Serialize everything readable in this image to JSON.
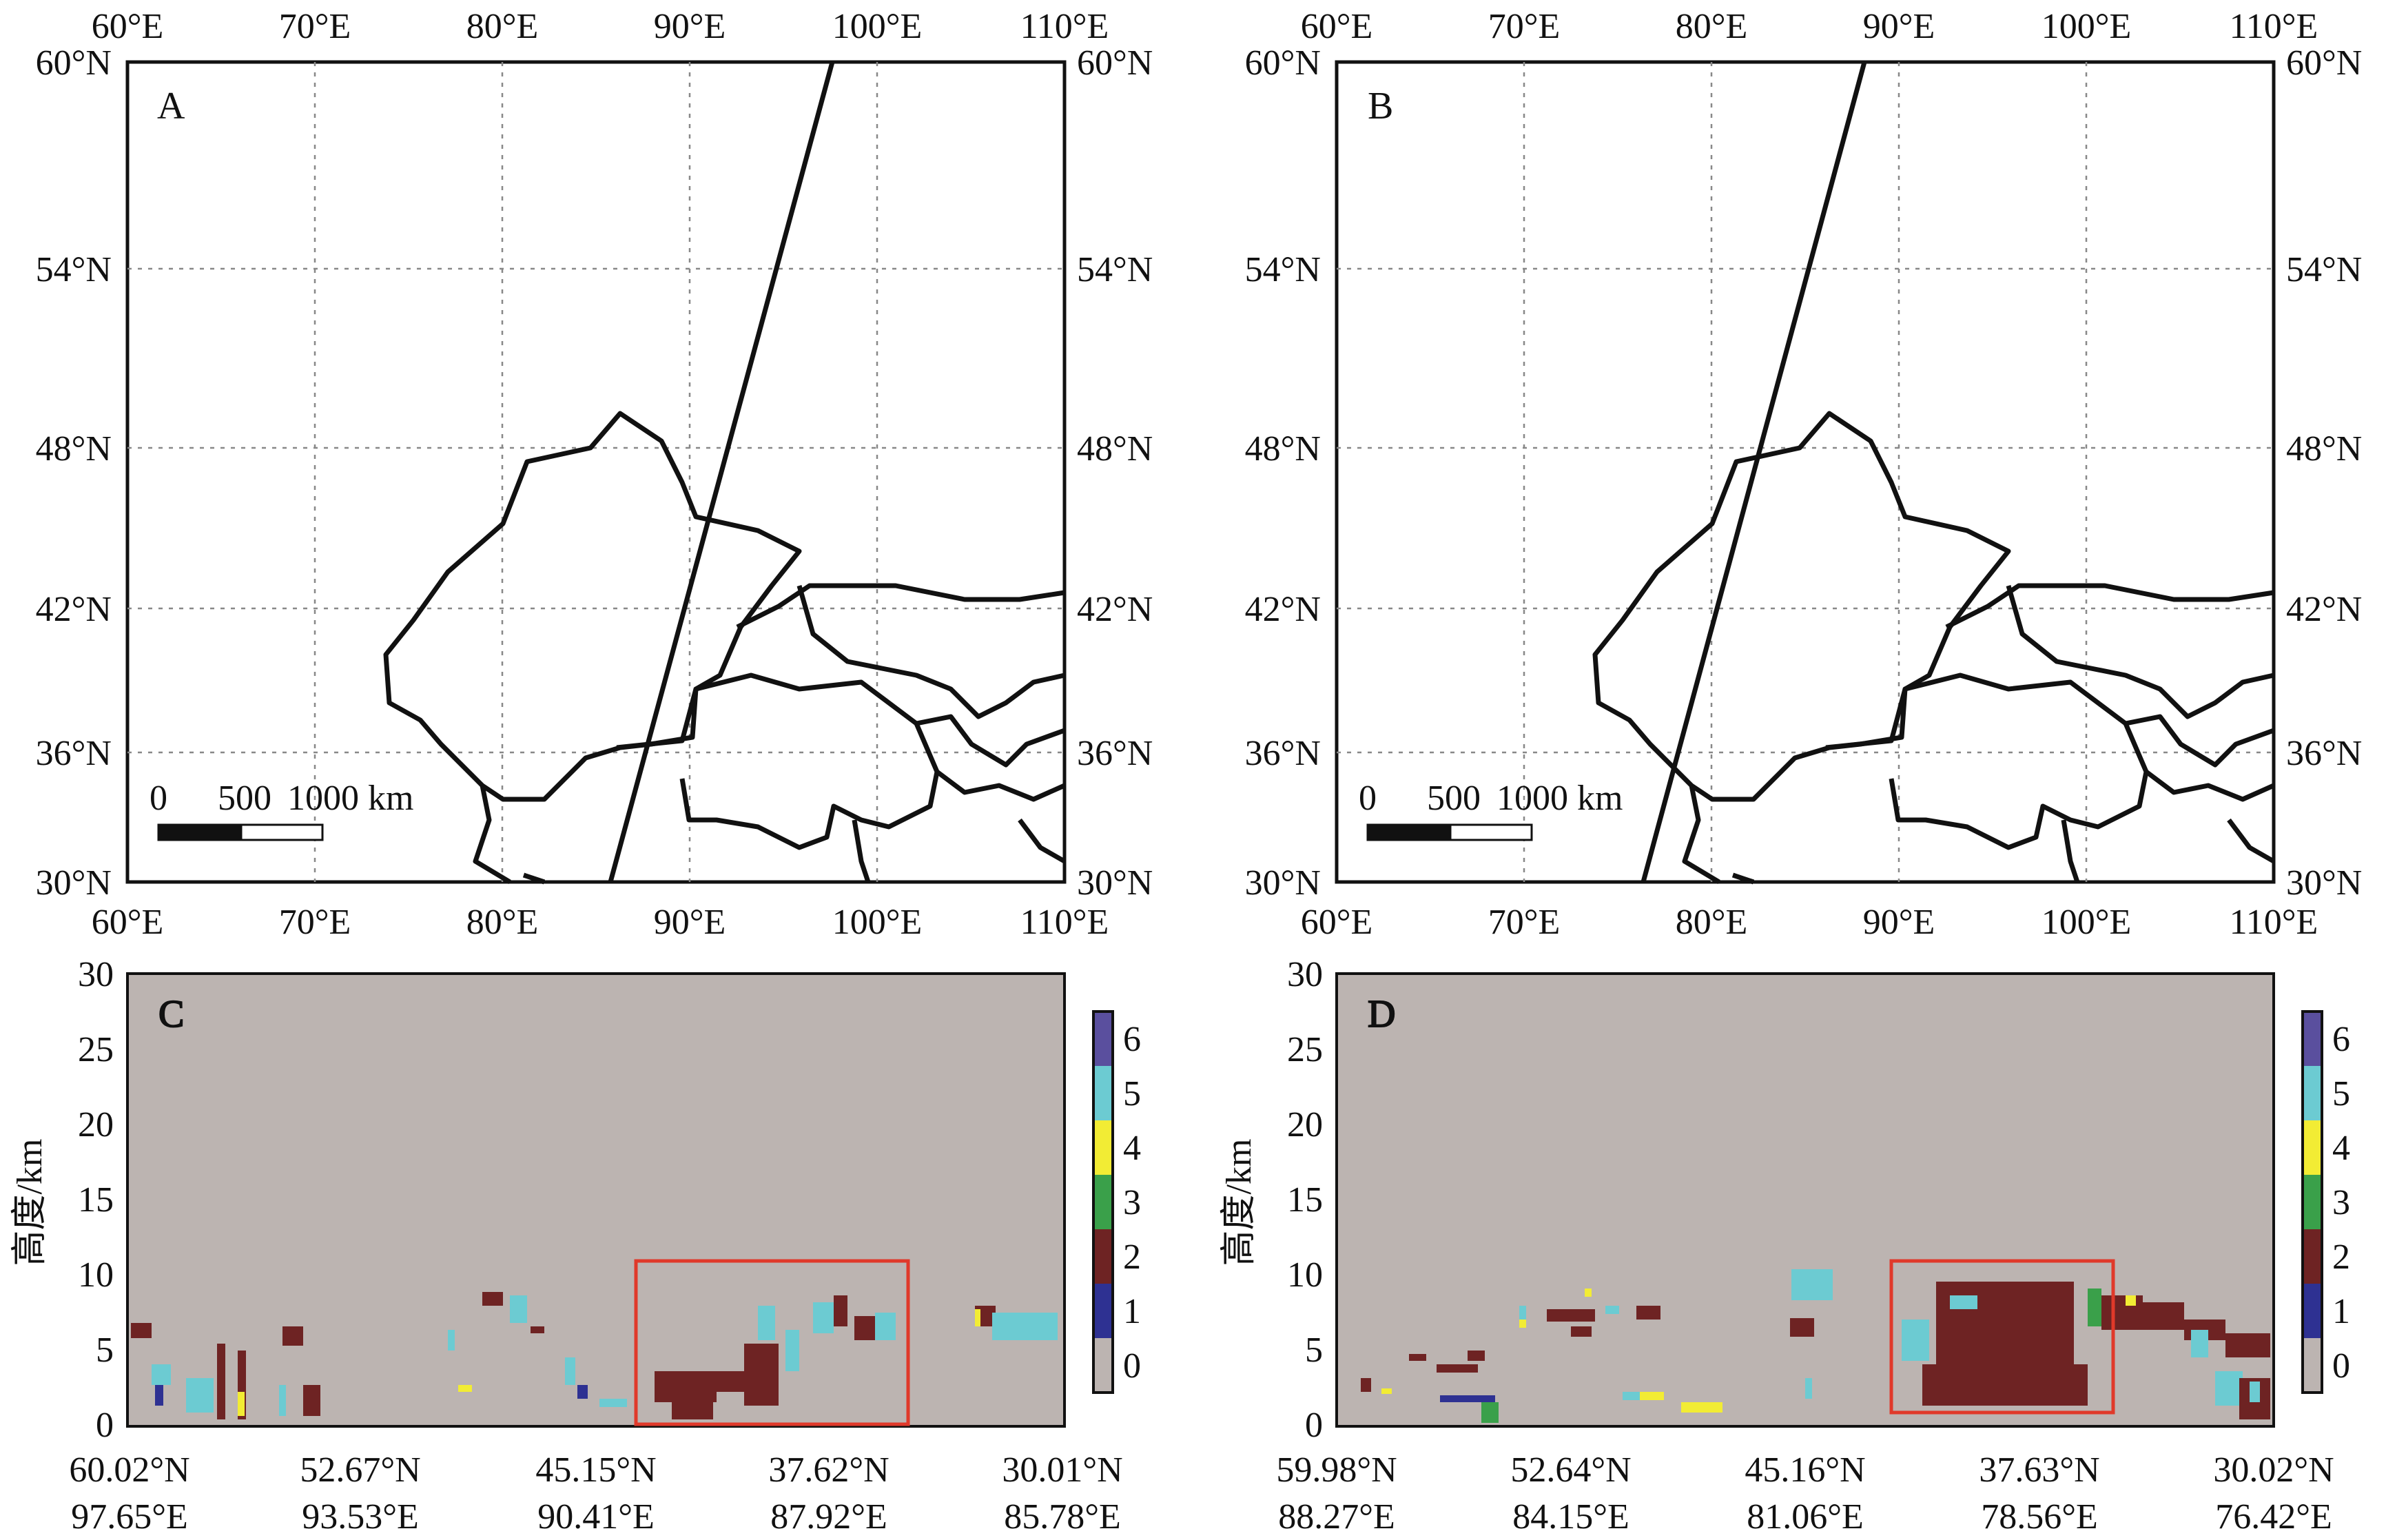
{
  "maps": [
    {
      "id": "A",
      "panel_label": "A",
      "lon_ticks": [
        "60°E",
        "70°E",
        "80°E",
        "90°E",
        "100°E",
        "110°E"
      ],
      "lat_ticks": [
        "60°N",
        "54°N",
        "48°N",
        "42°N",
        "36°N",
        "30°N"
      ],
      "scalebar": {
        "zero": "0",
        "mid": "500",
        "end": "1000 km"
      },
      "track": [
        [
          97.65,
          60.02
        ],
        [
          85.78,
          30.01
        ]
      ]
    },
    {
      "id": "B",
      "panel_label": "B",
      "lon_ticks": [
        "60°E",
        "70°E",
        "80°E",
        "90°E",
        "100°E",
        "110°E"
      ],
      "lat_ticks": [
        "60°N",
        "54°N",
        "48°N",
        "42°N",
        "36°N",
        "30°N"
      ],
      "scalebar": {
        "zero": "0",
        "mid": "500",
        "end": "1000 km"
      },
      "track": [
        [
          88.27,
          59.98
        ],
        [
          76.42,
          30.02
        ]
      ]
    }
  ],
  "profiles": [
    {
      "id": "C",
      "panel_label": "C",
      "ylabel": "高度/km",
      "y_ticks": [
        "30",
        "25",
        "20",
        "15",
        "10",
        "5",
        "0"
      ],
      "x_ticks": [
        {
          "lat": "60.02°N",
          "lon": "97.65°E"
        },
        {
          "lat": "52.67°N",
          "lon": "93.53°E"
        },
        {
          "lat": "45.15°N",
          "lon": "90.41°E"
        },
        {
          "lat": "37.62°N",
          "lon": "87.92°E"
        },
        {
          "lat": "30.01°N",
          "lon": "85.78°E"
        }
      ],
      "highlight_box": {
        "x_from": 0.57,
        "x_to": 0.83,
        "height_from_km": 0,
        "height_to_km": 10.7
      }
    },
    {
      "id": "D",
      "panel_label": "D",
      "ylabel": "高度/km",
      "y_ticks": [
        "30",
        "25",
        "20",
        "15",
        "10",
        "5",
        "0"
      ],
      "x_ticks": [
        {
          "lat": "59.98°N",
          "lon": "88.27°E"
        },
        {
          "lat": "52.64°N",
          "lon": "84.15°E"
        },
        {
          "lat": "45.16°N",
          "lon": "81.06°E"
        },
        {
          "lat": "37.63°N",
          "lon": "78.56°E"
        },
        {
          "lat": "30.02°N",
          "lon": "76.42°E"
        }
      ],
      "highlight_box": {
        "x_from": 0.57,
        "x_to": 0.78,
        "height_from_km": 1.0,
        "height_to_km": 10.7
      }
    }
  ],
  "colorbar": {
    "labels": [
      "6",
      "5",
      "4",
      "3",
      "2",
      "1",
      "0"
    ],
    "colors": {
      "0": "#bcb4b1",
      "1": "#2e3192",
      "2": "#6e2323",
      "3": "#3aa04a",
      "4": "#f2ec34",
      "5": "#6ccbd2",
      "6": "#5a4f9e"
    }
  },
  "colors": {
    "background_class_0": "#bcb4b1",
    "highlight_box": "#e0392a",
    "track_and_borders": "#111111",
    "grid": "#888888"
  }
}
